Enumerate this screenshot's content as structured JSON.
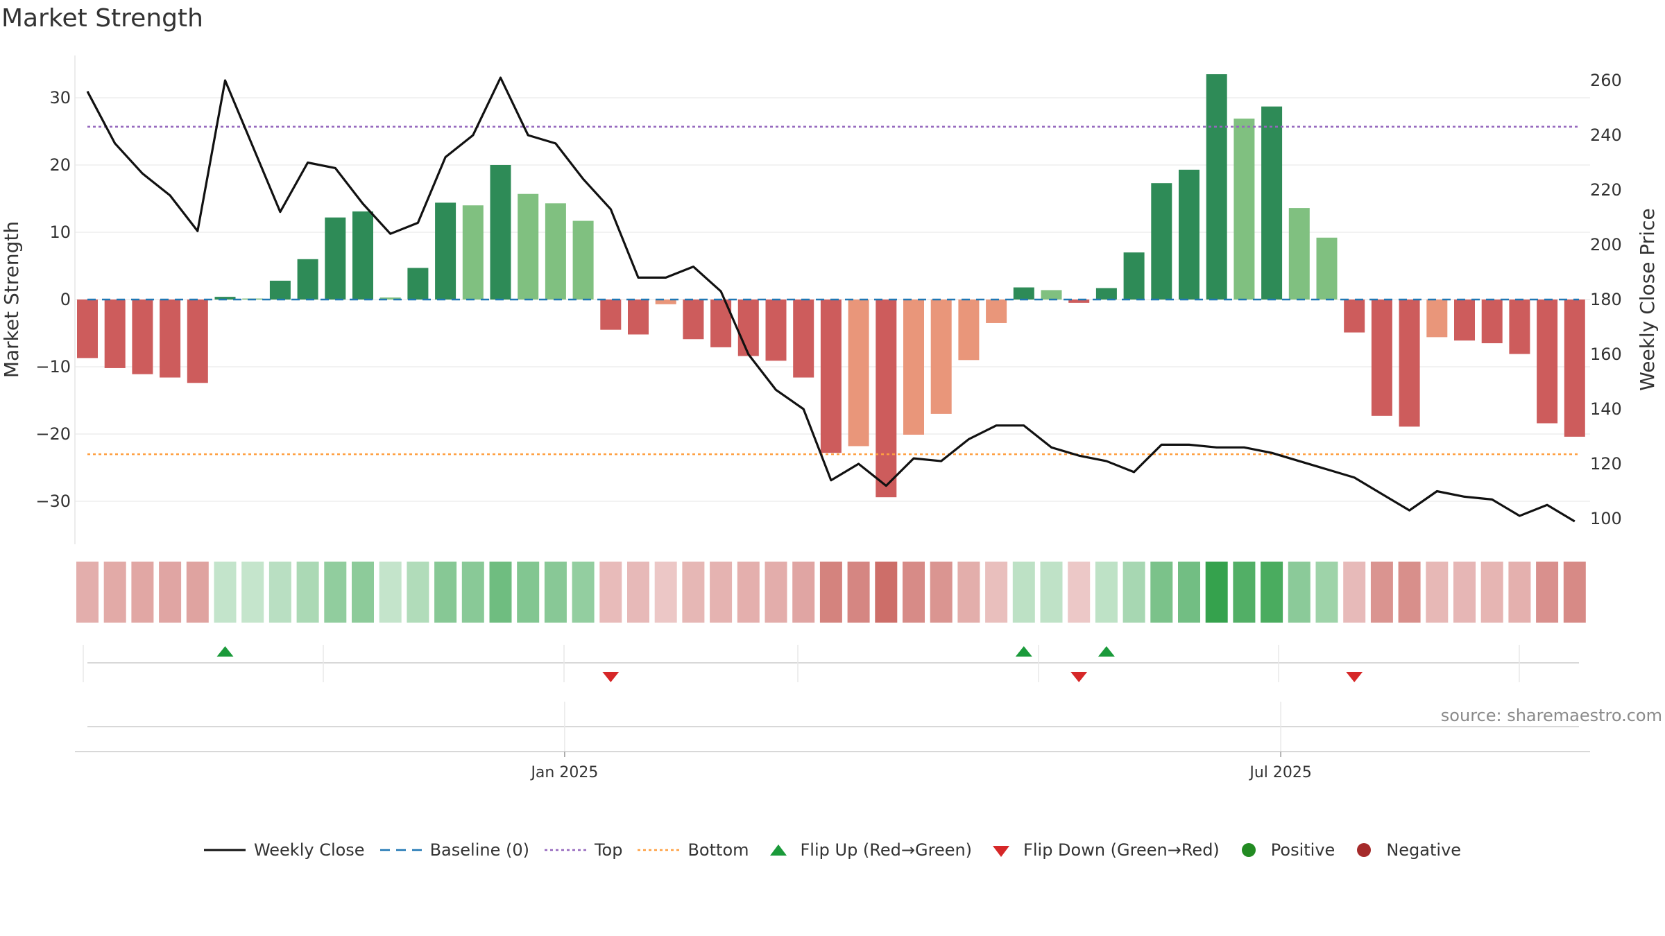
{
  "page": {
    "title": "Market Strength",
    "source": "source: sharemaestro.com"
  },
  "legend": {
    "weekly_close": "Weekly Close",
    "baseline": "Baseline (0)",
    "top": "Top",
    "bottom": "Bottom",
    "flip_up": "Flip Up (Red→Green)",
    "flip_down": "Flip Down (Green→Red)",
    "positive": "Positive",
    "negative": "Negative"
  },
  "colors": {
    "pos_strong": "#2e8b57",
    "pos_light": "#80c080",
    "neg_strong": "#cd5c5c",
    "neg_light": "#e9967a",
    "close_line": "#111111",
    "baseline": "#1f77b4",
    "top": "#9467bd",
    "bottom": "#ff9f40",
    "flip_up": "#1a9a3a",
    "flip_down": "#d62728",
    "positive_dot": "#228b22",
    "negative_dot": "#a52a2a"
  },
  "chart_data": {
    "type": "bar",
    "title": "Market Strength",
    "ylabel": "Market Strength",
    "y2label": "Weekly Close Price",
    "ylim": [
      -36,
      36
    ],
    "y2lim": [
      96,
      266
    ],
    "yticks": [
      30,
      20,
      10,
      0,
      -10,
      -20,
      -30
    ],
    "y2ticks": [
      260,
      240,
      220,
      200,
      180,
      160,
      140,
      120,
      100
    ],
    "xtick_labels": [
      {
        "label": "Jan 2025",
        "index": 17
      },
      {
        "label": "Jul 2025",
        "index": 43
      }
    ],
    "top_line": 25.7,
    "bottom_line": -23.0,
    "baseline": 0,
    "strength": [
      -8.7,
      -10.2,
      -11.1,
      -11.6,
      -12.4,
      0.4,
      0.15,
      2.8,
      6.0,
      12.2,
      13.1,
      0.3,
      4.7,
      14.4,
      14.0,
      20.0,
      15.7,
      14.3,
      11.7,
      -4.5,
      -5.2,
      -0.7,
      -5.9,
      -7.1,
      -8.4,
      -9.1,
      -11.6,
      -22.8,
      -21.8,
      -29.4,
      -20.1,
      -17.0,
      -9.0,
      -3.5,
      1.8,
      1.4,
      -0.5,
      1.7,
      7.0,
      17.3,
      19.3,
      33.5,
      26.9,
      28.7,
      13.6,
      9.2,
      -4.9,
      -17.3,
      -18.9,
      -5.6,
      -6.1,
      -6.5,
      -8.1,
      -18.4,
      -20.4
    ],
    "strength_strong": [
      true,
      true,
      true,
      true,
      true,
      true,
      false,
      true,
      true,
      true,
      true,
      false,
      true,
      true,
      false,
      true,
      false,
      false,
      false,
      true,
      true,
      false,
      true,
      true,
      true,
      true,
      true,
      true,
      false,
      true,
      false,
      false,
      false,
      false,
      true,
      false,
      true,
      true,
      true,
      true,
      true,
      true,
      false,
      true,
      false,
      false,
      true,
      true,
      true,
      false,
      true,
      true,
      true,
      true,
      true
    ],
    "weekly_close": [
      256,
      237,
      226,
      218,
      205,
      260,
      236,
      212,
      230,
      228,
      215,
      204,
      208,
      232,
      240,
      261,
      240,
      237,
      224,
      213,
      188,
      188,
      192,
      183,
      160,
      147,
      140,
      114,
      120,
      112,
      122,
      121,
      129,
      134,
      134,
      126,
      123,
      121,
      117,
      127,
      127,
      126,
      126,
      124,
      121,
      118,
      115,
      109,
      103,
      110,
      108,
      107,
      101,
      105,
      99
    ],
    "flips_up": [
      5,
      34,
      37
    ],
    "flips_down": [
      19,
      36,
      46
    ]
  }
}
